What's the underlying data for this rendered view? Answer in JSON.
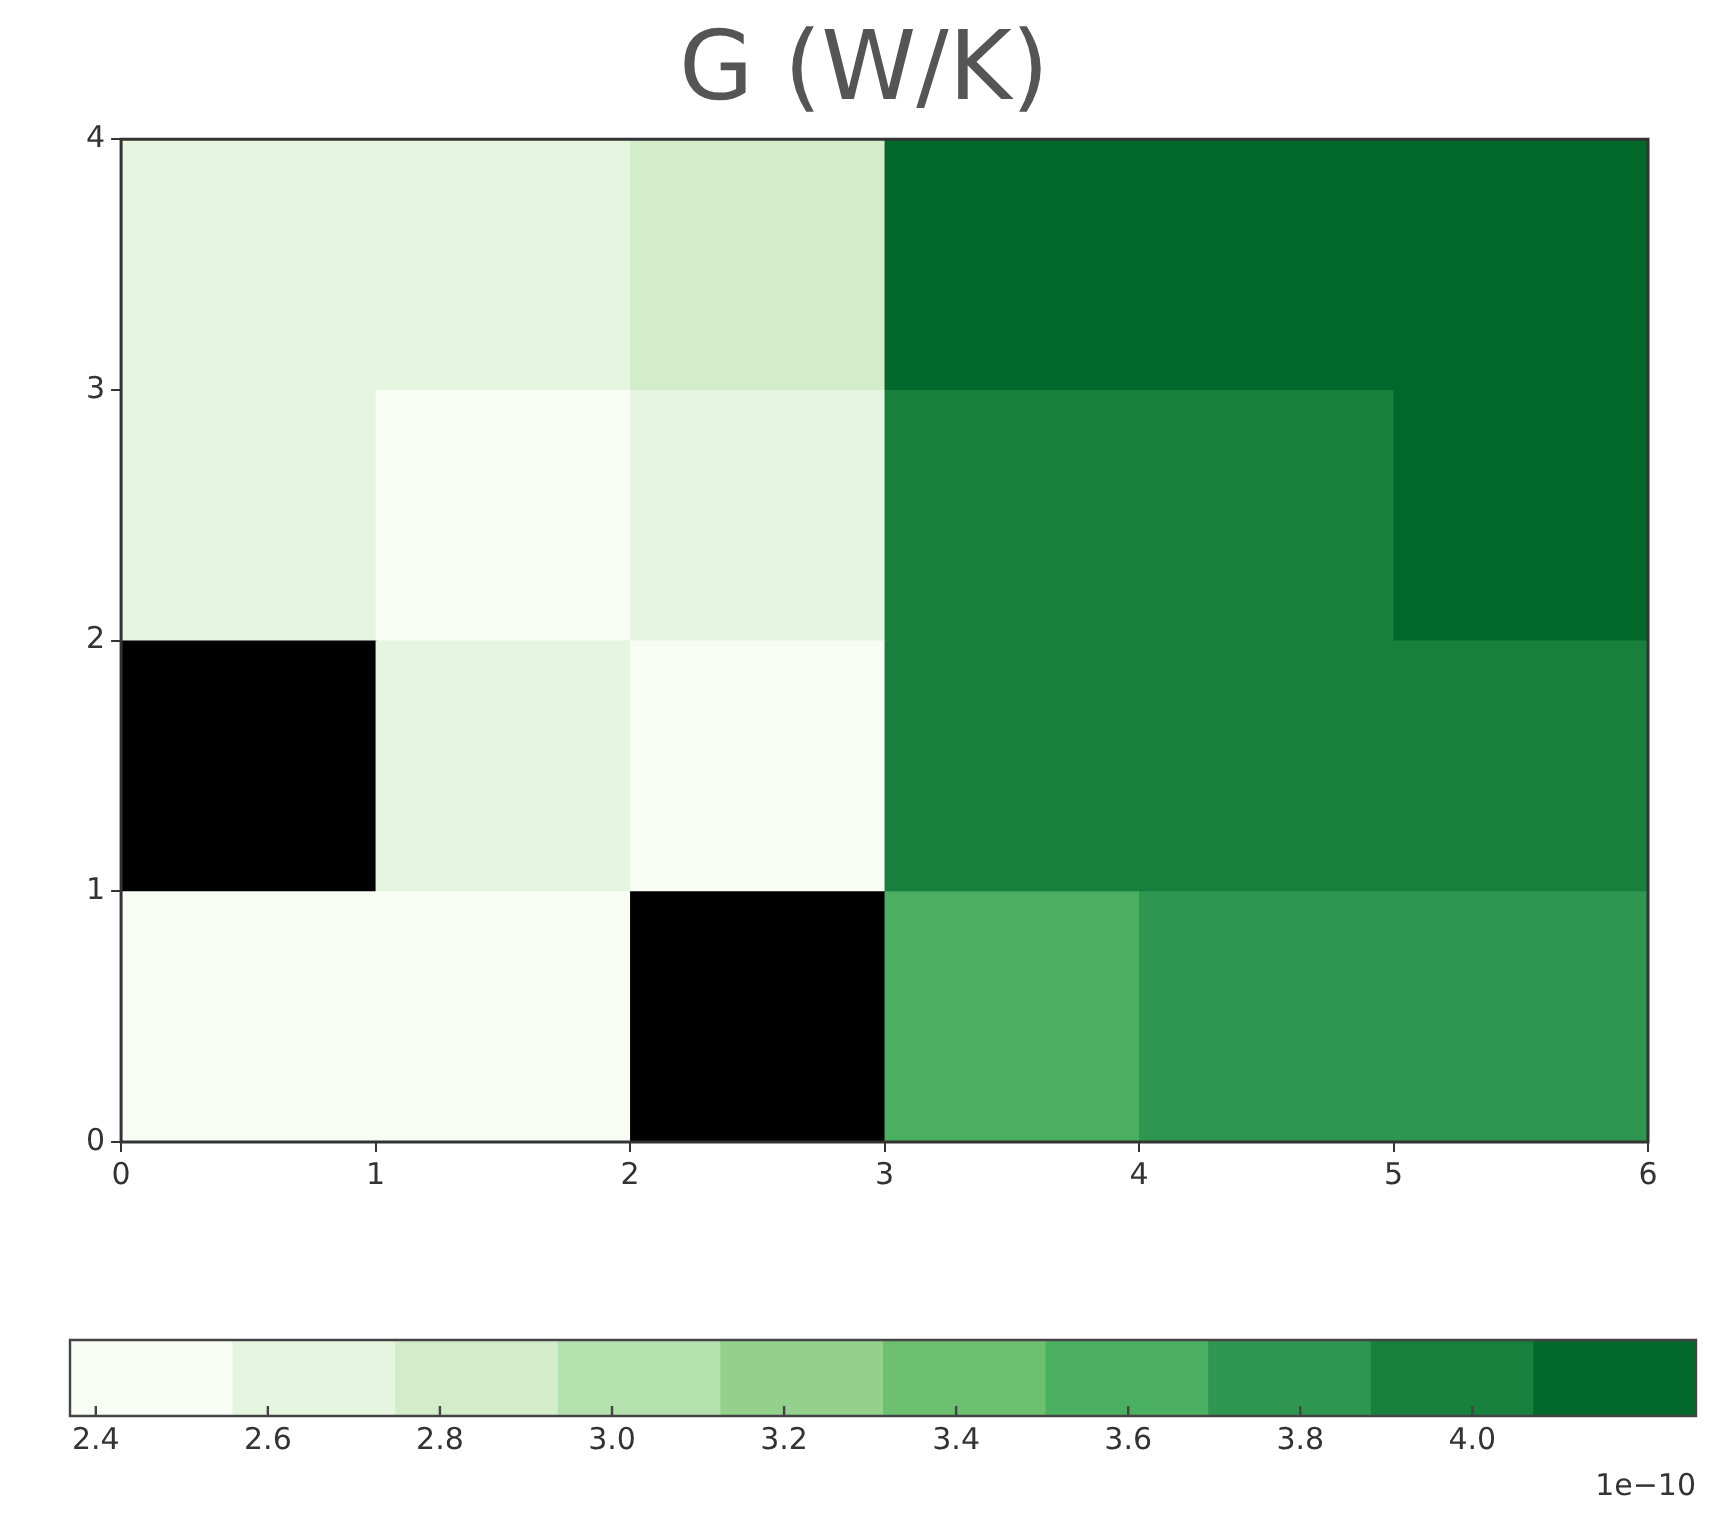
{
  "chart_data": {
    "type": "heatmap",
    "title": "G (W/K)",
    "cells": [
      [
        2.65,
        2.65,
        2.85,
        4.17,
        4.17,
        4.17
      ],
      [
        2.65,
        2.46,
        2.65,
        3.98,
        3.98,
        4.17
      ],
      [
        null,
        2.65,
        2.46,
        3.98,
        3.98,
        3.98
      ],
      [
        2.46,
        2.46,
        null,
        3.6,
        3.8,
        3.8
      ]
    ],
    "xlim": [
      0,
      6
    ],
    "xticks": [
      0,
      1,
      2,
      3,
      4,
      5,
      6
    ],
    "ylim": [
      0,
      4
    ],
    "yticks": [
      0,
      1,
      2,
      3,
      4
    ],
    "clim": [
      2.37,
      4.26
    ],
    "cticks": [
      2.4,
      2.6,
      2.8,
      {
        "value": 3,
        "label": "3.0"
      },
      3.2,
      3.4,
      3.6,
      3.8,
      {
        "value": 4,
        "label": "4.0"
      }
    ],
    "annotations": [
      "1e−10"
    ],
    "grid": false
  }
}
